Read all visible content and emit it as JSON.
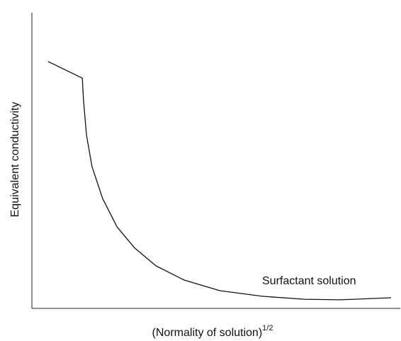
{
  "chart_data": {
    "type": "line",
    "y_label": "Equivalent conductivity",
    "x_label": {
      "text": "(Normality of solution)",
      "superscript": "1/2"
    },
    "annotation": "Surfactant solution",
    "color": "#111111",
    "xlim": [
      0,
      100
    ],
    "ylim": [
      0,
      100
    ],
    "x": [
      4.4,
      13.7,
      14.0,
      14.8,
      16.3,
      19.2,
      23.1,
      27.9,
      33.7,
      41.3,
      51.0,
      62.5,
      74.0,
      83.7,
      97.5
    ],
    "values": [
      83.5,
      77.9,
      70.7,
      58.8,
      48.0,
      37.2,
      27.6,
      20.4,
      14.4,
      9.6,
      6.0,
      4.1,
      3.1,
      2.9,
      3.6
    ]
  }
}
